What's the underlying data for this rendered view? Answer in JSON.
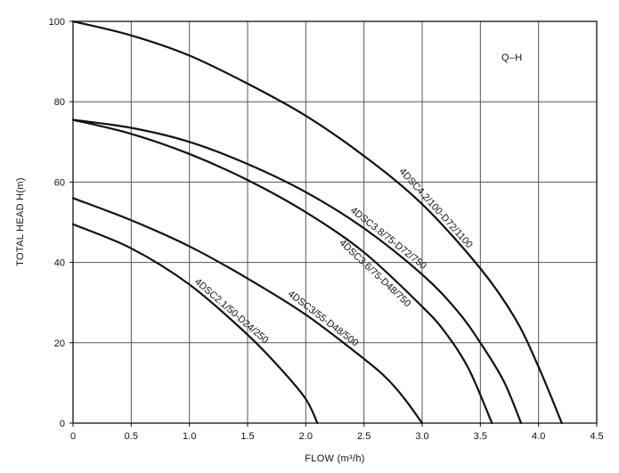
{
  "chart_data": {
    "type": "line",
    "title": "Q–H",
    "xlabel": "FLOW (m³/h)",
    "ylabel": "TOTAL HEAD  H(m)",
    "xlim": [
      0,
      4.5
    ],
    "ylim": [
      0,
      100
    ],
    "grid": true,
    "x_ticks": [
      0,
      0.5,
      1.0,
      1.5,
      2.0,
      2.5,
      3.0,
      3.5,
      4.0,
      4.5
    ],
    "x_tick_labels": [
      "0",
      "0.5",
      "1.0",
      "1.5",
      "2.0",
      "2.5",
      "3.0",
      "3.5",
      "4.0",
      "4.5"
    ],
    "y_ticks": [
      0,
      20,
      40,
      60,
      80,
      100
    ],
    "y_tick_labels": [
      "0",
      "20",
      "40",
      "60",
      "80",
      "100"
    ],
    "series": [
      {
        "name": "4DSC4.2/100-D72/1100",
        "x": [
          0,
          0.5,
          1.0,
          1.5,
          2.0,
          2.5,
          3.0,
          3.5,
          3.8,
          4.0,
          4.2
        ],
        "y": [
          100,
          96.5,
          91.5,
          84.5,
          76.5,
          66.5,
          54.5,
          38.5,
          26,
          14,
          0
        ]
      },
      {
        "name": "4DSC3.8/75-D72/750",
        "x": [
          0,
          0.5,
          1.0,
          1.5,
          2.0,
          2.5,
          3.0,
          3.3,
          3.5,
          3.7,
          3.85
        ],
        "y": [
          75.5,
          73.5,
          70,
          64.5,
          57.5,
          48.5,
          37,
          28,
          20,
          10.5,
          0
        ]
      },
      {
        "name": "4DSC3.6/75-D48/750",
        "x": [
          0,
          0.5,
          1.0,
          1.5,
          2.0,
          2.5,
          3.0,
          3.2,
          3.4,
          3.6
        ],
        "y": [
          75.5,
          72,
          67,
          60.5,
          52.5,
          42.5,
          29,
          22.5,
          13.5,
          0
        ]
      },
      {
        "name": "4DSC3/55-D48/500",
        "x": [
          0,
          0.5,
          1.0,
          1.5,
          2.0,
          2.5,
          2.7,
          2.85,
          3.0
        ],
        "y": [
          56,
          50.5,
          44,
          36,
          27,
          16,
          11,
          6,
          0
        ]
      },
      {
        "name": "4DSC2.1/50-D24/250",
        "x": [
          0,
          0.5,
          1.0,
          1.5,
          1.8,
          2.0,
          2.1
        ],
        "y": [
          49.5,
          43.5,
          34.5,
          22,
          13,
          6,
          0
        ]
      }
    ],
    "annotations": [
      "4DSC4.2/100-D72/1100",
      "4DSC3.8/75-D72/750",
      "4DSC3.6/75-D48/750",
      "4DSC3/55-D48/500",
      "4DSC2.1/50-D24/250"
    ]
  }
}
